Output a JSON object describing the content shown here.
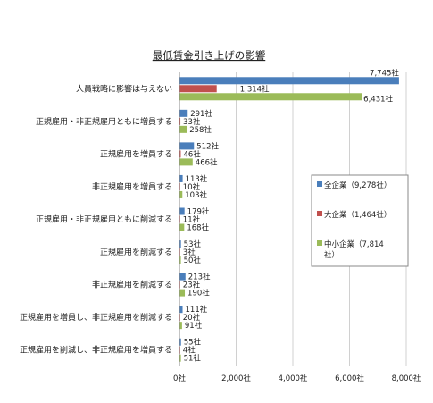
{
  "chart_data": {
    "type": "bar",
    "orientation": "horizontal",
    "title": "最低賃金引き上げの影響",
    "xlabel": "",
    "ylabel": "",
    "xlim": [
      0,
      8000
    ],
    "x_ticks": [
      "0社",
      "2,000社",
      "4,000社",
      "6,000社",
      "8,000社"
    ],
    "x_tick_values": [
      0,
      2000,
      4000,
      6000,
      8000
    ],
    "grid": true,
    "legend_position": "right",
    "categories": [
      "人員戦略に影響は与えない",
      "正規雇用・非正規雇用ともに増員する",
      "正規雇用を増員する",
      "非正規雇用を増員する",
      "正規雇用・非正規雇用ともに削減する",
      "正規雇用を削減する",
      "非正規雇用を削減する",
      "正規雇用を増員し、非正規雇用を削減する",
      "正規雇用を削減し、非正規雇用を増員する"
    ],
    "series": [
      {
        "name": "全企業（9,278社）",
        "legend_lines": [
          "全企業（9,278社）"
        ],
        "color": "#4a7ebb",
        "values": [
          7745,
          291,
          512,
          113,
          179,
          53,
          213,
          111,
          55
        ],
        "labels": [
          "7,745社",
          "291社",
          "512社",
          "113社",
          "179社",
          "53社",
          "213社",
          "111社",
          "55社"
        ]
      },
      {
        "name": "大企業（1,464社）",
        "legend_lines": [
          "大企業（1,464社）"
        ],
        "color": "#c0504d",
        "values": [
          1314,
          33,
          46,
          10,
          11,
          3,
          23,
          20,
          4
        ],
        "labels": [
          "1,314社",
          "33社",
          "46社",
          "10社",
          "11社",
          "3社",
          "23社",
          "20社",
          "4社"
        ]
      },
      {
        "name": "中小企業（7,814社）",
        "legend_lines": [
          "中小企業（7,814",
          "社）"
        ],
        "color": "#9bbb59",
        "values": [
          6431,
          258,
          466,
          103,
          168,
          50,
          190,
          91,
          51
        ],
        "labels": [
          "6,431社",
          "258社",
          "466社",
          "103社",
          "168社",
          "50社",
          "190社",
          "91社",
          "51社"
        ]
      }
    ]
  }
}
